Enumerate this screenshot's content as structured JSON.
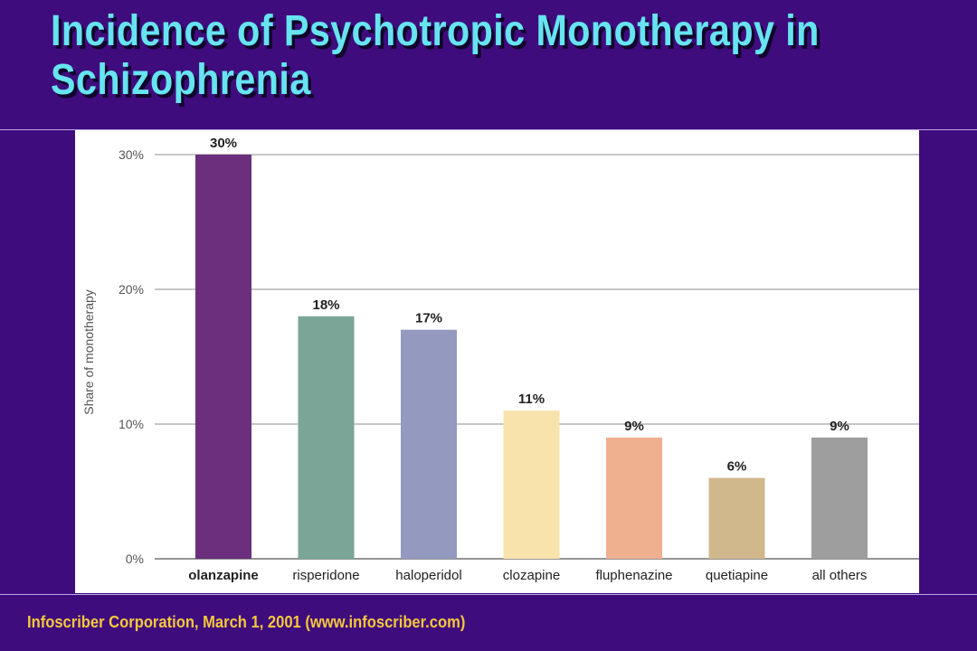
{
  "slide": {
    "title_line1": "Incidence of Psychotropic Monotherapy in",
    "title_line2": "Schizophrenia",
    "footer": "Infoscriber Corporation, March 1, 2001 (www.infoscriber.com)"
  },
  "chart_data": {
    "type": "bar",
    "title": "",
    "xlabel": "",
    "ylabel": "Share of monotherapy",
    "ylim": [
      0,
      30
    ],
    "yticks": [
      0,
      10,
      20,
      30
    ],
    "ytick_labels": [
      "0%",
      "10%",
      "20%",
      "30%"
    ],
    "grid": true,
    "categories": [
      "olanzapine",
      "risperidone",
      "haloperidol",
      "clozapine",
      "fluphenazine",
      "quetiapine",
      "all others"
    ],
    "values": [
      30,
      18,
      17,
      11,
      9,
      6,
      9
    ],
    "data_labels": [
      "30%",
      "18%",
      "17%",
      "11%",
      "9%",
      "6%",
      "9%"
    ],
    "highlighted_category": "olanzapine",
    "colors": [
      "#6b2f7e",
      "#7aa597",
      "#9399bf",
      "#f8e3ad",
      "#efb090",
      "#d1b88c",
      "#9d9e9d"
    ]
  }
}
